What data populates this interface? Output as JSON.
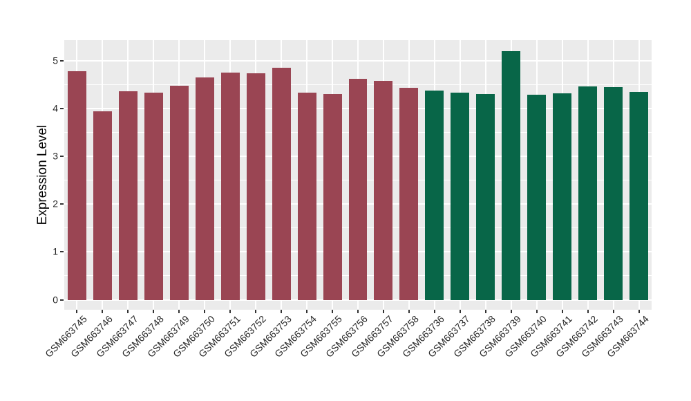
{
  "chart_data": {
    "type": "bar",
    "title": "",
    "xlabel": "",
    "ylabel": "Expression Level",
    "ylim": [
      -0.21,
      5.43
    ],
    "yticks": [
      0,
      1,
      2,
      3,
      4,
      5
    ],
    "y_minor_ticks": [
      0.5,
      1.5,
      2.5,
      3.5,
      4.5
    ],
    "legend_position": "none",
    "grid": "white major and minor gridlines on gray panel",
    "bars": [
      {
        "label": "GSM663745",
        "value": 4.78,
        "group": "group1"
      },
      {
        "label": "GSM663746",
        "value": 3.95,
        "group": "group1"
      },
      {
        "label": "GSM663747",
        "value": 4.37,
        "group": "group1"
      },
      {
        "label": "GSM663748",
        "value": 4.33,
        "group": "group1"
      },
      {
        "label": "GSM663749",
        "value": 4.48,
        "group": "group1"
      },
      {
        "label": "GSM663750",
        "value": 4.66,
        "group": "group1"
      },
      {
        "label": "GSM663751",
        "value": 4.76,
        "group": "group1"
      },
      {
        "label": "GSM663752",
        "value": 4.74,
        "group": "group1"
      },
      {
        "label": "GSM663753",
        "value": 4.85,
        "group": "group1"
      },
      {
        "label": "GSM663754",
        "value": 4.33,
        "group": "group1"
      },
      {
        "label": "GSM663755",
        "value": 4.3,
        "group": "group1"
      },
      {
        "label": "GSM663756",
        "value": 4.63,
        "group": "group1"
      },
      {
        "label": "GSM663757",
        "value": 4.58,
        "group": "group1"
      },
      {
        "label": "GSM663758",
        "value": 4.44,
        "group": "group1"
      },
      {
        "label": "GSM663736",
        "value": 4.38,
        "group": "group2"
      },
      {
        "label": "GSM663737",
        "value": 4.34,
        "group": "group2"
      },
      {
        "label": "GSM663738",
        "value": 4.3,
        "group": "group2"
      },
      {
        "label": "GSM663739",
        "value": 5.2,
        "group": "group2"
      },
      {
        "label": "GSM663740",
        "value": 4.29,
        "group": "group2"
      },
      {
        "label": "GSM663741",
        "value": 4.32,
        "group": "group2"
      },
      {
        "label": "GSM663742",
        "value": 4.46,
        "group": "group2"
      },
      {
        "label": "GSM663743",
        "value": 4.45,
        "group": "group2"
      },
      {
        "label": "GSM663744",
        "value": 4.35,
        "group": "group2"
      }
    ]
  },
  "colors": {
    "bar_group1": "#9A4553",
    "bar_group2": "#086648",
    "panel_bg": "#EBEBEB",
    "gridline": "#FFFFFF",
    "axis_text": "#262626",
    "axis_title": "#000000",
    "tick_mark": "#333333",
    "page_bg": "#FFFFFF"
  }
}
